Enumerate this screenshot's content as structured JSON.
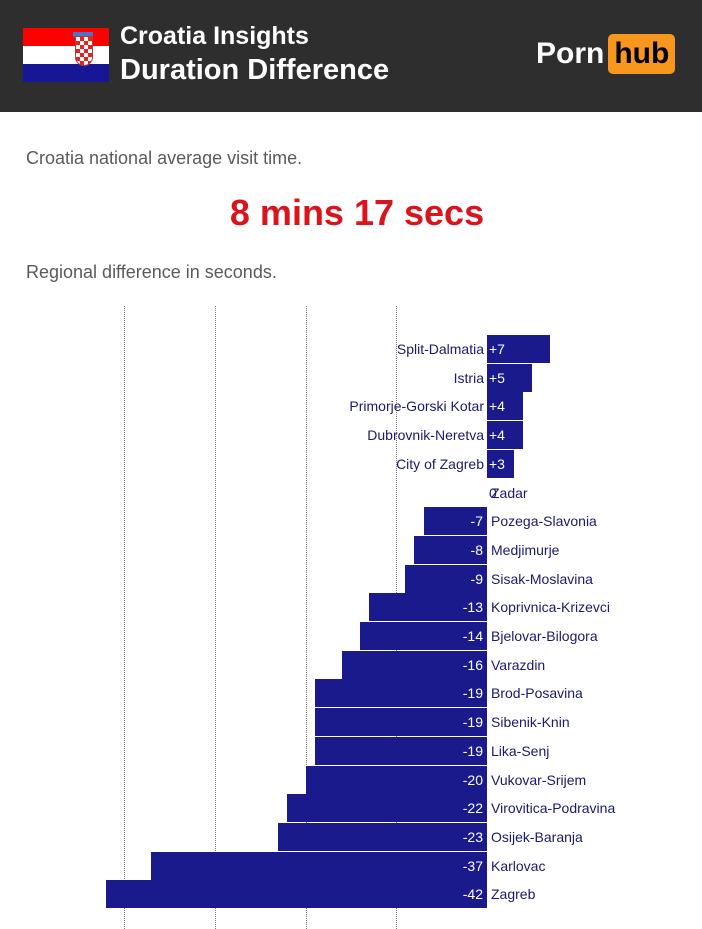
{
  "header": {
    "title_line1": "Croatia Insights",
    "title_line2": "Duration Difference",
    "logo_part1": "Porn",
    "logo_part2": "hub",
    "flag_icon": "croatia-flag-icon"
  },
  "summary": {
    "average_label": "Croatia national average visit time.",
    "average_value": "8 mins 17 secs",
    "regional_label": "Regional difference in seconds."
  },
  "colors": {
    "header_bg": "#2e2e2e",
    "accent_red": "#d9141c",
    "bar": "#1a1a8c",
    "logo_orange": "#f7971d"
  },
  "chart_data": {
    "type": "bar",
    "orientation": "horizontal",
    "categories": [
      "Split-Dalmatia",
      "Istria",
      "Primorje-Gorski Kotar",
      "Dubrovnik-Neretva",
      "City of Zagreb",
      "Zadar",
      "Pozega-Slavonia",
      "Medjimurje",
      "Sisak-Moslavina",
      "Koprivnica-Krizevci",
      "Bjelovar-Bilogora",
      "Varazdin",
      "Brod-Posavina",
      "Sibenik-Knin",
      "Lika-Senj",
      "Vukovar-Srijem",
      "Virovitica-Podravina",
      "Osijek-Baranja",
      "Karlovac",
      "Zagreb"
    ],
    "values": [
      7,
      5,
      4,
      4,
      3,
      0,
      -7,
      -8,
      -9,
      -13,
      -14,
      -16,
      -19,
      -19,
      -19,
      -20,
      -22,
      -23,
      -37,
      -42
    ],
    "value_labels": [
      "+7",
      "+5",
      "+4",
      "+4",
      "+3",
      "0",
      "-7",
      "-8",
      "-9",
      "-13",
      "-14",
      "-16",
      "-19",
      "-19",
      "-19",
      "-20",
      "-22",
      "-23",
      "-37",
      "-42"
    ],
    "xlim": [
      -42,
      7
    ],
    "gridline_values": [
      -40,
      -30,
      -20,
      -10
    ],
    "grid": true,
    "title": "",
    "xlabel": "",
    "ylabel": ""
  }
}
